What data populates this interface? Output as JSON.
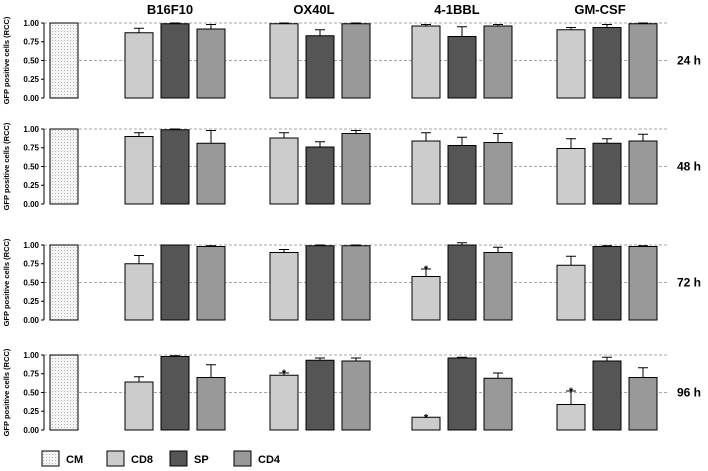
{
  "chart_data": {
    "type": "bar",
    "title": "",
    "ylabel": "GFP positive cells (RCC)",
    "ylim": [
      0,
      1.0
    ],
    "yticks": [
      "0.00",
      "0.25",
      "0.50",
      "0.75",
      "1.00"
    ],
    "groups": [
      "B16F10",
      "OX40L",
      "4-1BBL",
      "GM-CSF"
    ],
    "control": "CM",
    "series_names": [
      "CD8",
      "SP",
      "CD4"
    ],
    "legend": [
      {
        "label": "CM",
        "color": "#f2f2f2",
        "pattern": "dots"
      },
      {
        "label": "CD8",
        "color": "#cccccc"
      },
      {
        "label": "SP",
        "color": "#555555"
      },
      {
        "label": "CD4",
        "color": "#999999"
      }
    ],
    "panels": [
      {
        "time": "24 h",
        "control_value": 1.0,
        "groups": [
          {
            "name": "B16F10",
            "values": [
              0.87,
              0.99,
              0.92
            ],
            "errors": [
              0.06,
              0.01,
              0.06
            ],
            "sig": [
              false,
              false,
              false
            ]
          },
          {
            "name": "OX40L",
            "values": [
              0.99,
              0.83,
              0.99
            ],
            "errors": [
              0.01,
              0.08,
              0.01
            ],
            "sig": [
              false,
              false,
              false
            ]
          },
          {
            "name": "4-1BBL",
            "values": [
              0.96,
              0.82,
              0.96
            ],
            "errors": [
              0.02,
              0.13,
              0.02
            ],
            "sig": [
              false,
              false,
              false
            ]
          },
          {
            "name": "GM-CSF",
            "values": [
              0.91,
              0.94,
              0.99
            ],
            "errors": [
              0.03,
              0.04,
              0.01
            ],
            "sig": [
              false,
              false,
              false
            ]
          }
        ]
      },
      {
        "time": "48 h",
        "control_value": 1.0,
        "groups": [
          {
            "name": "B16F10",
            "values": [
              0.9,
              0.99,
              0.81
            ],
            "errors": [
              0.05,
              0.01,
              0.17
            ],
            "sig": [
              false,
              false,
              false
            ]
          },
          {
            "name": "OX40L",
            "values": [
              0.88,
              0.76,
              0.94
            ],
            "errors": [
              0.07,
              0.07,
              0.04
            ],
            "sig": [
              false,
              false,
              false
            ]
          },
          {
            "name": "4-1BBL",
            "values": [
              0.84,
              0.78,
              0.82
            ],
            "errors": [
              0.11,
              0.11,
              0.12
            ],
            "sig": [
              false,
              false,
              false
            ]
          },
          {
            "name": "GM-CSF",
            "values": [
              0.74,
              0.81,
              0.84
            ],
            "errors": [
              0.13,
              0.06,
              0.09
            ],
            "sig": [
              false,
              false,
              false
            ]
          }
        ]
      },
      {
        "time": "72 h",
        "control_value": 1.0,
        "groups": [
          {
            "name": "B16F10",
            "values": [
              0.75,
              1.0,
              0.98
            ],
            "errors": [
              0.11,
              0.0,
              0.01
            ],
            "sig": [
              false,
              false,
              false
            ]
          },
          {
            "name": "OX40L",
            "values": [
              0.9,
              0.99,
              0.99
            ],
            "errors": [
              0.04,
              0.01,
              0.01
            ],
            "sig": [
              false,
              false,
              false
            ]
          },
          {
            "name": "4-1BBL",
            "values": [
              0.58,
              1.0,
              0.9
            ],
            "errors": [
              0.1,
              0.03,
              0.07
            ],
            "sig": [
              true,
              false,
              false
            ]
          },
          {
            "name": "GM-CSF",
            "values": [
              0.73,
              0.98,
              0.98
            ],
            "errors": [
              0.12,
              0.01,
              0.01
            ],
            "sig": [
              false,
              false,
              false
            ]
          }
        ]
      },
      {
        "time": "96 h",
        "control_value": 1.0,
        "groups": [
          {
            "name": "B16F10",
            "values": [
              0.64,
              0.98,
              0.7
            ],
            "errors": [
              0.07,
              0.01,
              0.17
            ],
            "sig": [
              false,
              false,
              false
            ]
          },
          {
            "name": "OX40L",
            "values": [
              0.73,
              0.93,
              0.92
            ],
            "errors": [
              0.03,
              0.03,
              0.04
            ],
            "sig": [
              true,
              false,
              false
            ]
          },
          {
            "name": "4-1BBL",
            "values": [
              0.17,
              0.96,
              0.69
            ],
            "errors": [
              0.0,
              0.01,
              0.07
            ],
            "sig": [
              true,
              false,
              false
            ]
          },
          {
            "name": "GM-CSF",
            "values": [
              0.34,
              0.92,
              0.7
            ],
            "errors": [
              0.18,
              0.05,
              0.13
            ],
            "sig": [
              true,
              false,
              false
            ]
          }
        ]
      }
    ]
  }
}
